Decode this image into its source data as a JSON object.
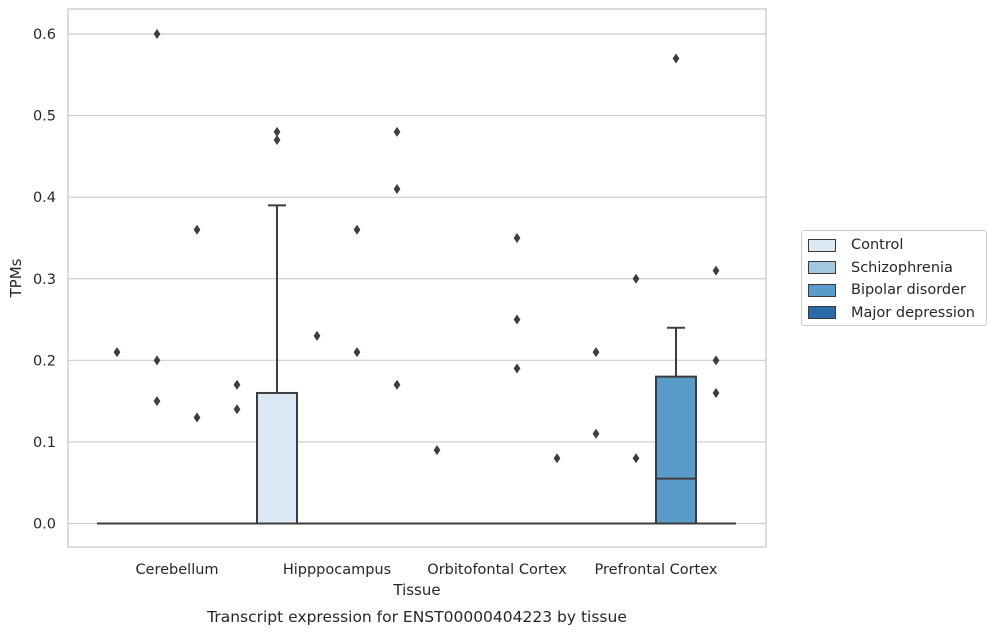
{
  "chart_data": {
    "type": "box",
    "title": "Transcript expression for ENST00000404223 by tissue",
    "xlabel": "Tissue",
    "ylabel": "TPMs",
    "ylim": [
      -0.03,
      0.63
    ],
    "yticks": [
      "0.0",
      "0.1",
      "0.2",
      "0.3",
      "0.4",
      "0.5",
      "0.6"
    ],
    "grid": "horizontal",
    "legend_position": "right",
    "categories": [
      "Cerebellum",
      "Hipppocampus",
      "Orbitofontal Cortex",
      "Prefrontal Cortex"
    ],
    "series": [
      {
        "name": "Control",
        "color": "#dbe8f5"
      },
      {
        "name": "Schizophrenia",
        "color": "#a2c7df"
      },
      {
        "name": "Bipolar disorder",
        "color": "#5a9bc9"
      },
      {
        "name": "Major depression",
        "color": "#2b6aa8"
      }
    ],
    "boxes": [
      {
        "category": "Cerebellum",
        "series": "Control",
        "q1": 0,
        "median": 0,
        "q3": 0,
        "whisker_low": 0,
        "whisker_high": 0,
        "outliers": [
          0.21
        ]
      },
      {
        "category": "Cerebellum",
        "series": "Schizophrenia",
        "q1": 0,
        "median": 0,
        "q3": 0,
        "whisker_low": 0,
        "whisker_high": 0,
        "outliers": [
          0.6,
          0.2,
          0.15
        ]
      },
      {
        "category": "Cerebellum",
        "series": "Bipolar disorder",
        "q1": 0,
        "median": 0,
        "q3": 0,
        "whisker_low": 0,
        "whisker_high": 0,
        "outliers": [
          0.36,
          0.13
        ]
      },
      {
        "category": "Cerebellum",
        "series": "Major depression",
        "q1": 0,
        "median": 0,
        "q3": 0,
        "whisker_low": 0,
        "whisker_high": 0,
        "outliers": [
          0.17,
          0.14
        ]
      },
      {
        "category": "Hipppocampus",
        "series": "Control",
        "q1": 0,
        "median": 0,
        "q3": 0.16,
        "whisker_low": 0,
        "whisker_high": 0.39,
        "outliers": [
          0.48,
          0.47
        ]
      },
      {
        "category": "Hipppocampus",
        "series": "Schizophrenia",
        "q1": 0,
        "median": 0,
        "q3": 0,
        "whisker_low": 0,
        "whisker_high": 0,
        "outliers": [
          0.23
        ]
      },
      {
        "category": "Hipppocampus",
        "series": "Bipolar disorder",
        "q1": 0,
        "median": 0,
        "q3": 0,
        "whisker_low": 0,
        "whisker_high": 0,
        "outliers": [
          0.36,
          0.21
        ]
      },
      {
        "category": "Hipppocampus",
        "series": "Major depression",
        "q1": 0,
        "median": 0,
        "q3": 0,
        "whisker_low": 0,
        "whisker_high": 0,
        "outliers": [
          0.48,
          0.41,
          0.17
        ]
      },
      {
        "category": "Orbitofontal Cortex",
        "series": "Control",
        "q1": 0,
        "median": 0,
        "q3": 0,
        "whisker_low": 0,
        "whisker_high": 0,
        "outliers": [
          0.09
        ]
      },
      {
        "category": "Orbitofontal Cortex",
        "series": "Schizophrenia",
        "q1": 0,
        "median": 0,
        "q3": 0,
        "whisker_low": 0,
        "whisker_high": 0,
        "outliers": []
      },
      {
        "category": "Orbitofontal Cortex",
        "series": "Bipolar disorder",
        "q1": 0,
        "median": 0,
        "q3": 0,
        "whisker_low": 0,
        "whisker_high": 0,
        "outliers": [
          0.35,
          0.25,
          0.19
        ]
      },
      {
        "category": "Orbitofontal Cortex",
        "series": "Major depression",
        "q1": 0,
        "median": 0,
        "q3": 0,
        "whisker_low": 0,
        "whisker_high": 0,
        "outliers": [
          0.08
        ]
      },
      {
        "category": "Prefrontal Cortex",
        "series": "Control",
        "q1": 0,
        "median": 0,
        "q3": 0,
        "whisker_low": 0,
        "whisker_high": 0,
        "outliers": [
          0.21,
          0.11
        ]
      },
      {
        "category": "Prefrontal Cortex",
        "series": "Schizophrenia",
        "q1": 0,
        "median": 0,
        "q3": 0,
        "whisker_low": 0,
        "whisker_high": 0,
        "outliers": [
          0.3,
          0.08
        ]
      },
      {
        "category": "Prefrontal Cortex",
        "series": "Bipolar disorder",
        "q1": 0,
        "median": 0.055,
        "q3": 0.18,
        "whisker_low": 0,
        "whisker_high": 0.24,
        "outliers": [
          0.57
        ]
      },
      {
        "category": "Prefrontal Cortex",
        "series": "Major depression",
        "q1": 0,
        "median": 0,
        "q3": 0,
        "whisker_low": 0,
        "whisker_high": 0,
        "outliers": [
          0.31,
          0.2,
          0.16
        ]
      }
    ]
  }
}
